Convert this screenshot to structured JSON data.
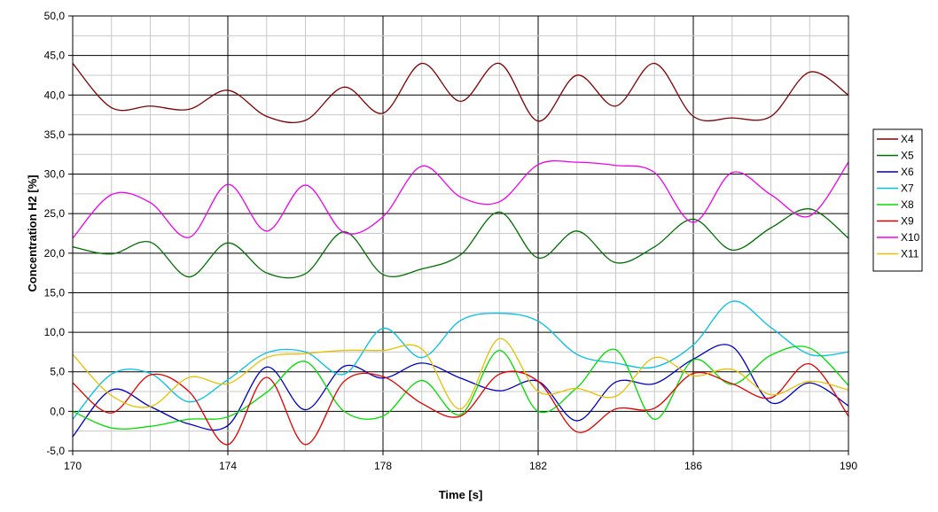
{
  "chart_data": {
    "type": "line",
    "title": "",
    "xlabel": "Time [s]",
    "ylabel": "Concentration H2 [%]",
    "xlim": [
      170,
      190
    ],
    "ylim": [
      -5,
      50
    ],
    "x_ticks": [
      170,
      174,
      178,
      182,
      186,
      190
    ],
    "x_tick_labels": [
      "170",
      "174",
      "178",
      "182",
      "186",
      "190"
    ],
    "x_minor_step": 1,
    "y_ticks": [
      -5,
      0,
      5,
      10,
      15,
      20,
      25,
      30,
      35,
      40,
      45,
      50
    ],
    "y_tick_labels": [
      "-5,0",
      "0,0",
      "5,0",
      "10,0",
      "15,0",
      "20,0",
      "25,0",
      "30,0",
      "35,0",
      "40,0",
      "45,0",
      "50,0"
    ],
    "grid": true,
    "legend_position": "right",
    "x": [
      170,
      171,
      172,
      173,
      174,
      175,
      176,
      177,
      178,
      179,
      180,
      181,
      182,
      183,
      184,
      185,
      186,
      187,
      188,
      189,
      190
    ],
    "series": [
      {
        "name": "X4",
        "color": "#800000",
        "values": [
          44.0,
          38.4,
          38.6,
          38.2,
          40.6,
          37.3,
          36.8,
          41.0,
          37.7,
          44.0,
          39.2,
          44.0,
          36.7,
          42.5,
          38.6,
          44.0,
          37.3,
          37.1,
          37.3,
          42.9,
          40.0
        ]
      },
      {
        "name": "X5",
        "color": "#007000",
        "values": [
          20.8,
          19.9,
          21.4,
          17.0,
          21.3,
          17.5,
          17.4,
          22.7,
          17.3,
          18.0,
          19.8,
          25.2,
          19.4,
          22.8,
          18.8,
          20.8,
          24.3,
          20.4,
          23.2,
          25.6,
          21.9
        ]
      },
      {
        "name": "X6",
        "color": "#0000c0",
        "values": [
          -3.2,
          2.7,
          0.6,
          -1.6,
          -1.8,
          5.6,
          0.2,
          5.7,
          4.2,
          6.1,
          4.2,
          2.6,
          3.8,
          -1.2,
          3.7,
          3.5,
          6.6,
          8.2,
          1.1,
          3.6,
          0.7
        ]
      },
      {
        "name": "X7",
        "color": "#00c0e8",
        "values": [
          -1.0,
          4.7,
          4.8,
          1.2,
          4.0,
          7.4,
          7.5,
          4.7,
          10.5,
          6.8,
          11.5,
          12.4,
          11.4,
          7.2,
          6.1,
          5.6,
          8.4,
          13.9,
          10.6,
          7.2,
          7.5
        ]
      },
      {
        "name": "X8",
        "color": "#00dd00",
        "values": [
          0.0,
          -2.1,
          -1.9,
          -1.0,
          -0.7,
          2.4,
          6.3,
          0.0,
          -0.6,
          3.9,
          -0.4,
          7.7,
          0.0,
          3.0,
          7.8,
          -1.0,
          6.5,
          3.4,
          7.1,
          8.0,
          3.3
        ]
      },
      {
        "name": "X9",
        "color": "#e00000",
        "values": [
          3.6,
          -0.2,
          4.6,
          2.5,
          -4.2,
          4.3,
          -4.2,
          3.8,
          4.4,
          1.0,
          -0.6,
          4.7,
          3.8,
          -2.6,
          0.3,
          0.4,
          4.8,
          3.5,
          1.7,
          6.0,
          -0.6
        ]
      },
      {
        "name": "X10",
        "color": "#ee00ee",
        "values": [
          21.9,
          27.4,
          26.4,
          22.0,
          28.7,
          22.8,
          28.6,
          22.6,
          24.6,
          31.0,
          27.1,
          26.5,
          31.2,
          31.5,
          31.1,
          30.2,
          23.9,
          30.2,
          27.4,
          24.7,
          31.5
        ]
      },
      {
        "name": "X11",
        "color": "#e8c000",
        "values": [
          7.2,
          2.0,
          0.6,
          4.3,
          3.5,
          6.8,
          7.3,
          7.7,
          7.7,
          7.9,
          0.3,
          9.2,
          2.5,
          2.9,
          1.9,
          6.8,
          4.5,
          5.3,
          2.1,
          3.8,
          2.7
        ]
      }
    ]
  }
}
